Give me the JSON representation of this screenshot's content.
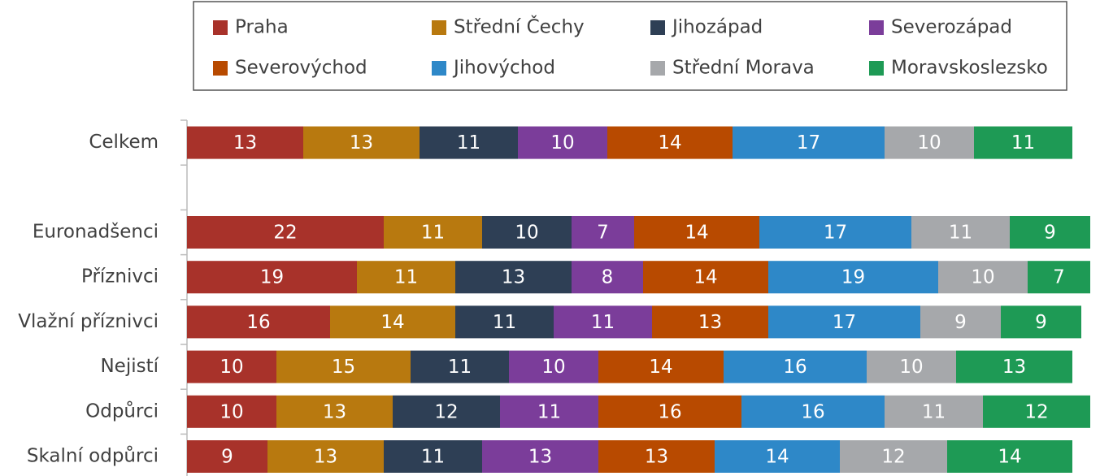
{
  "chart_data": {
    "type": "stacked-bar-horizontal",
    "categories": [
      "Celkem",
      null,
      "Euronadšenci",
      "Příznivci",
      "Vlažní příznivci",
      "Nejistí",
      "Odpůrci",
      "Skalní odpůrci"
    ],
    "series": [
      {
        "name": "Praha",
        "color": "#a8322a",
        "values": [
          13,
          null,
          22,
          19,
          16,
          10,
          10,
          9
        ]
      },
      {
        "name": "Střední Čechy",
        "color": "#b8790f",
        "values": [
          13,
          null,
          11,
          11,
          14,
          15,
          13,
          13
        ]
      },
      {
        "name": "Jihozápad",
        "color": "#2e3f55",
        "values": [
          11,
          null,
          10,
          13,
          11,
          11,
          12,
          11
        ]
      },
      {
        "name": "Severozápad",
        "color": "#7b3d9a",
        "values": [
          10,
          null,
          7,
          8,
          11,
          10,
          11,
          13
        ]
      },
      {
        "name": "Severovýchod",
        "color": "#b84a00",
        "values": [
          14,
          null,
          14,
          14,
          13,
          14,
          16,
          13
        ]
      },
      {
        "name": "Jihovýchod",
        "color": "#2e88c8",
        "values": [
          17,
          null,
          17,
          19,
          17,
          16,
          16,
          14
        ]
      },
      {
        "name": "Střední Morava",
        "color": "#a6a8ab",
        "values": [
          10,
          null,
          11,
          10,
          9,
          10,
          11,
          12
        ]
      },
      {
        "name": "Moravskoslezsko",
        "color": "#1e9a55",
        "values": [
          11,
          null,
          9,
          7,
          9,
          13,
          12,
          14
        ]
      }
    ],
    "xlim": [
      0,
      100
    ]
  }
}
